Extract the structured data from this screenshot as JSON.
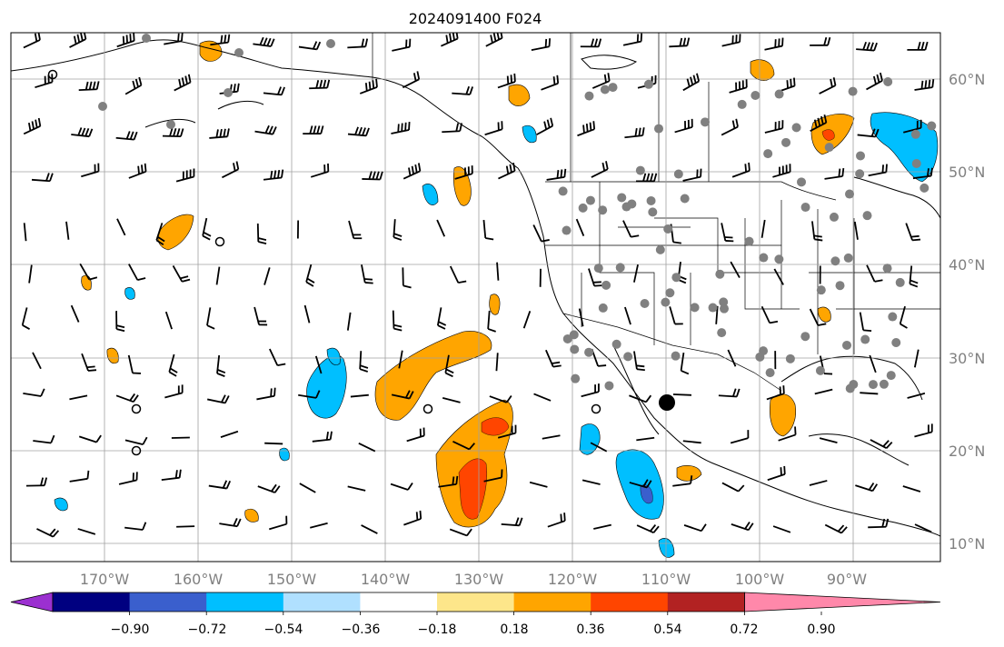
{
  "title": "2024091400 F024",
  "lon_labels": [
    "170°W",
    "160°W",
    "150°W",
    "140°W",
    "130°W",
    "120°W",
    "110°W",
    "100°W",
    "90°W"
  ],
  "lat_labels": [
    "60°N",
    "50°N",
    "40°N",
    "30°N",
    "20°N",
    "10°N"
  ],
  "colorbar": {
    "ticks": [
      "−0.90",
      "−0.72",
      "−0.54",
      "−0.36",
      "−0.18",
      "0.18",
      "0.36",
      "0.54",
      "0.72",
      "0.90"
    ],
    "colors": [
      "#9b30d0",
      "#000080",
      "#3a5fcd",
      "#00bfff",
      "#b0e0ff",
      "#ffffff",
      "#fde68a",
      "#ffa500",
      "#ff4500",
      "#b22222",
      "#ff88aa"
    ],
    "extend": "both"
  },
  "map": {
    "lon_range": [
      "180°W",
      "80°W"
    ],
    "lat_range": [
      "8°N",
      "65°N"
    ],
    "grid": true,
    "features": [
      "coastlines",
      "country borders",
      "state borders",
      "wind barbs",
      "filled contours",
      "station markers"
    ]
  },
  "palette": {
    "positive_light": "#fde68a",
    "positive": "#ffa500",
    "positive_strong": "#ff4500",
    "negative_light": "#b0e0ff",
    "negative": "#00bfff",
    "negative_strong": "#3a5fcd",
    "station": "#808080"
  }
}
